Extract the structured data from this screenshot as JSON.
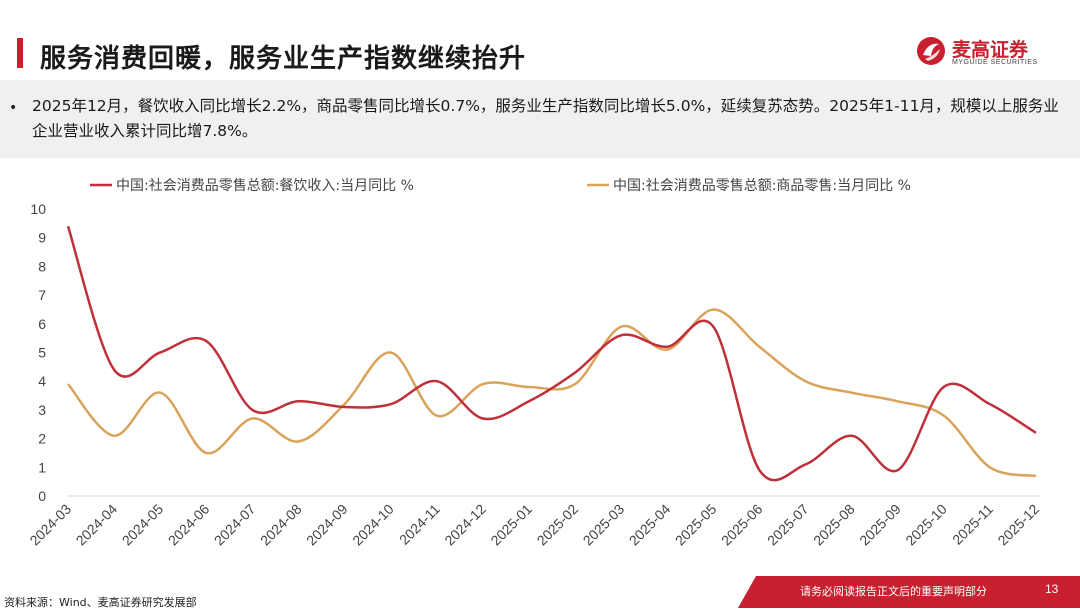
{
  "title": "服务消费回暖，服务业生产指数继续抬升",
  "logo": {
    "name_cn": "麦高证券",
    "name_en": "MYGUIDE SECURITIES"
  },
  "summary": "2025年12月，餐饮收入同比增长2.2%，商品零售同比增长0.7%，服务业生产指数同比增长5.0%，延续复苏态势。2025年1-11月，规模以上服务业企业营业收入累计同比增7.8%。",
  "footer": {
    "source": "资料来源：Wind、麦高证券研究发展部",
    "disclaimer": "请务必阅读报告正文后的重要声明部分",
    "page": "13"
  },
  "colors": {
    "brand": "#c8202e",
    "series1": "#c0303a",
    "series2": "#d9a35a"
  },
  "chart_data": {
    "type": "line",
    "categories": [
      "2024-03",
      "2024-04",
      "2024-05",
      "2024-06",
      "2024-07",
      "2024-08",
      "2024-09",
      "2024-10",
      "2024-11",
      "2024-12",
      "2025-01",
      "2025-02",
      "2025-03",
      "2025-04",
      "2025-05",
      "2025-06",
      "2025-07",
      "2025-08",
      "2025-09",
      "2025-10",
      "2025-11",
      "2025-12"
    ],
    "series": [
      {
        "name": "中国:社会消费品零售总额:餐饮收入:当月同比 %",
        "values": [
          9.4,
          4.4,
          5.0,
          5.4,
          3.0,
          3.3,
          3.1,
          3.2,
          4.0,
          2.7,
          3.3,
          4.3,
          5.6,
          5.2,
          5.9,
          0.9,
          1.1,
          2.1,
          0.9,
          3.8,
          3.2,
          2.2
        ]
      },
      {
        "name": "中国:社会消费品零售总额:商品零售:当月同比 %",
        "values": [
          3.9,
          2.1,
          3.6,
          1.5,
          2.7,
          1.9,
          3.2,
          5.0,
          2.8,
          3.9,
          3.8,
          3.9,
          5.9,
          5.1,
          6.5,
          5.2,
          4.0,
          3.6,
          3.3,
          2.8,
          1.0,
          0.7
        ]
      }
    ],
    "ylim": [
      0,
      10
    ],
    "yticks": [
      "0",
      "1",
      "2",
      "3",
      "4",
      "5",
      "6",
      "7",
      "8",
      "9",
      "10"
    ],
    "grid": false,
    "legend": "top"
  }
}
